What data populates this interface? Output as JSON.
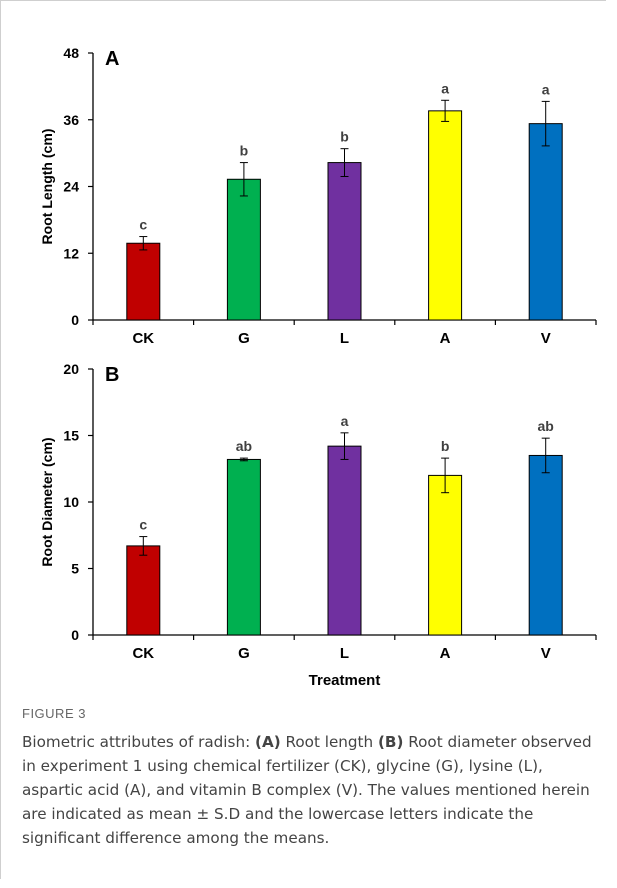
{
  "chart_data": [
    {
      "type": "bar",
      "panel_label": "A",
      "ylabel": "Root Length (cm)",
      "xlabel": "",
      "categories": [
        "CK",
        "G",
        "L",
        "A",
        "V"
      ],
      "values": [
        13.8,
        25.3,
        28.3,
        37.6,
        35.3
      ],
      "errors": [
        1.2,
        3.0,
        2.5,
        1.9,
        4.0
      ],
      "letters": [
        "c",
        "b",
        "b",
        "a",
        "a"
      ],
      "colors": [
        "#c00000",
        "#00b050",
        "#7030a0",
        "#ffff00",
        "#0070c0"
      ],
      "ylim": [
        0,
        48
      ],
      "yticks": [
        0,
        12,
        24,
        36,
        48
      ],
      "ytick_labels": [
        "0",
        "12",
        "24",
        "36",
        "48"
      ]
    },
    {
      "type": "bar",
      "panel_label": "B",
      "ylabel": "Root Diameter (cm)",
      "xlabel": "Treatment",
      "categories": [
        "CK",
        "G",
        "L",
        "A",
        "V"
      ],
      "values": [
        6.7,
        13.2,
        14.2,
        12.0,
        13.5
      ],
      "errors": [
        0.7,
        0.1,
        1.0,
        1.3,
        1.3
      ],
      "letters": [
        "c",
        "ab",
        "a",
        "b",
        "ab"
      ],
      "colors": [
        "#c00000",
        "#00b050",
        "#7030a0",
        "#ffff00",
        "#0070c0"
      ],
      "ylim": [
        0,
        20
      ],
      "yticks": [
        0,
        5,
        10,
        15,
        20
      ],
      "ytick_labels": [
        "0",
        "5",
        "10",
        "15",
        "20"
      ]
    }
  ],
  "caption": {
    "label": "FIGURE 3",
    "lead": "Biometric attributes of radish: ",
    "a_tag": "(A)",
    "a_text": " Root length ",
    "b_tag": "(B)",
    "rest": " Root diameter observed in experiment 1 using chemical fertilizer (CK), glycine (G), lysine (L), aspartic acid (A), and vitamin B complex (V). The values mentioned herein are indicated as mean ± S.D and the lowercase letters indicate the significant difference among the means."
  }
}
